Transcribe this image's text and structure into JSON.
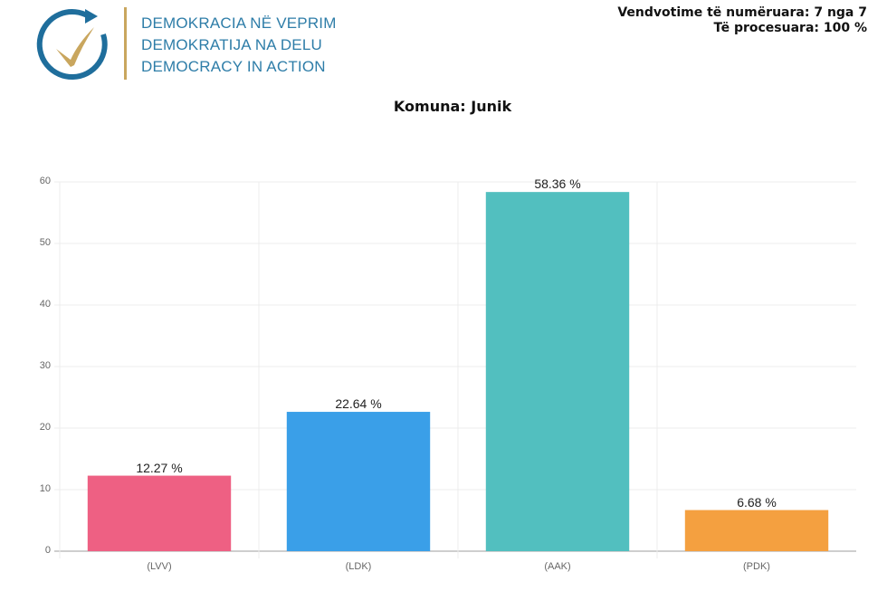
{
  "header": {
    "logo": {
      "icon": "checkmark-circle-arrow-icon",
      "lines": [
        "DEMOKRACIA NË VEPRIM",
        "DEMOKRATIJA NA DELU",
        "DEMOCRACY IN ACTION"
      ],
      "colors": {
        "text": "#2e7da8",
        "ring": "#1f6e9c",
        "check": "#c9a65e"
      }
    },
    "status": {
      "counted": "Vendvotime të numëruara: 7 nga 7",
      "processed": "Të procesuara: 100 %"
    }
  },
  "chart_title": "Komuna: Junik",
  "chart_data": {
    "type": "bar",
    "title": "Komuna: Junik",
    "categories": [
      "(LVV)",
      "(LDK)",
      "(AAK)",
      "(PDK)"
    ],
    "values": [
      12.27,
      22.64,
      58.36,
      6.68
    ],
    "value_labels": [
      "12.27 %",
      "22.64 %",
      "58.36 %",
      "6.68 %"
    ],
    "colors": [
      "#ee6083",
      "#3a9fe8",
      "#52bfbf",
      "#f4a040"
    ],
    "xlabel": "",
    "ylabel": "",
    "ylim": [
      0,
      60
    ],
    "yticks": [
      0,
      10,
      20,
      30,
      40,
      50,
      60
    ],
    "grid": true,
    "legend": "none"
  }
}
